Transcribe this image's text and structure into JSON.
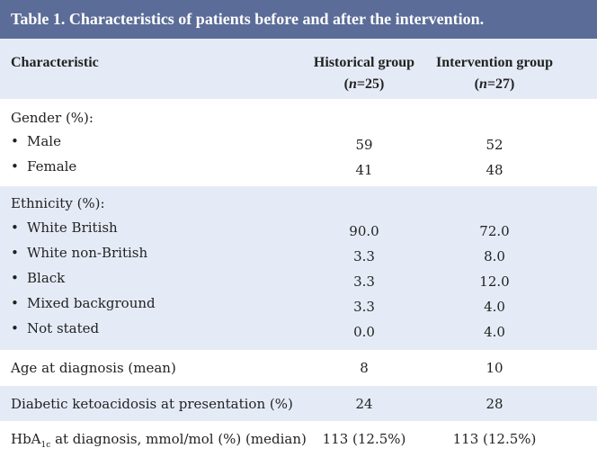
{
  "title": "Table 1. Characteristics of patients before and after the intervention.",
  "header": {
    "col1": "Characteristic",
    "col2": "Historical group",
    "col2_n": "(n=25)",
    "col3": "Intervention group",
    "col3_n": "(n=27)"
  },
  "gender": {
    "label": "Gender (%):",
    "rows": [
      {
        "label": "Male",
        "historical": "59",
        "intervention": "52"
      },
      {
        "label": "Female",
        "historical": "41",
        "intervention": "48"
      }
    ]
  },
  "ethnicity": {
    "label": "Ethnicity (%):",
    "rows": [
      {
        "label": "White British",
        "historical": "90.0",
        "intervention": "72.0"
      },
      {
        "label": "White non-British",
        "historical": "3.3",
        "intervention": "8.0"
      },
      {
        "label": "Black",
        "historical": "3.3",
        "intervention": "12.0"
      },
      {
        "label": "Mixed background",
        "historical": "3.3",
        "intervention": "4.0"
      },
      {
        "label": "Not stated",
        "historical": "0.0",
        "intervention": "4.0"
      }
    ]
  },
  "age": {
    "label": "Age at diagnosis (mean)",
    "historical": "8",
    "intervention": "10"
  },
  "dka": {
    "label": "Diabetic ketoacidosis at presentation (%)",
    "historical": "24",
    "intervention": "28"
  },
  "hba1c": {
    "label_pre": "HbA",
    "label_sub": "1c",
    "label_post": " at diagnosis, mmol/mol (%) (median)",
    "historical": "113 (12.5%)",
    "intervention": "113 (12.5%)"
  },
  "bullet_char": "•",
  "colors": {
    "title_bg": "#5b6c98",
    "band_bg": "#e5ebf6"
  }
}
